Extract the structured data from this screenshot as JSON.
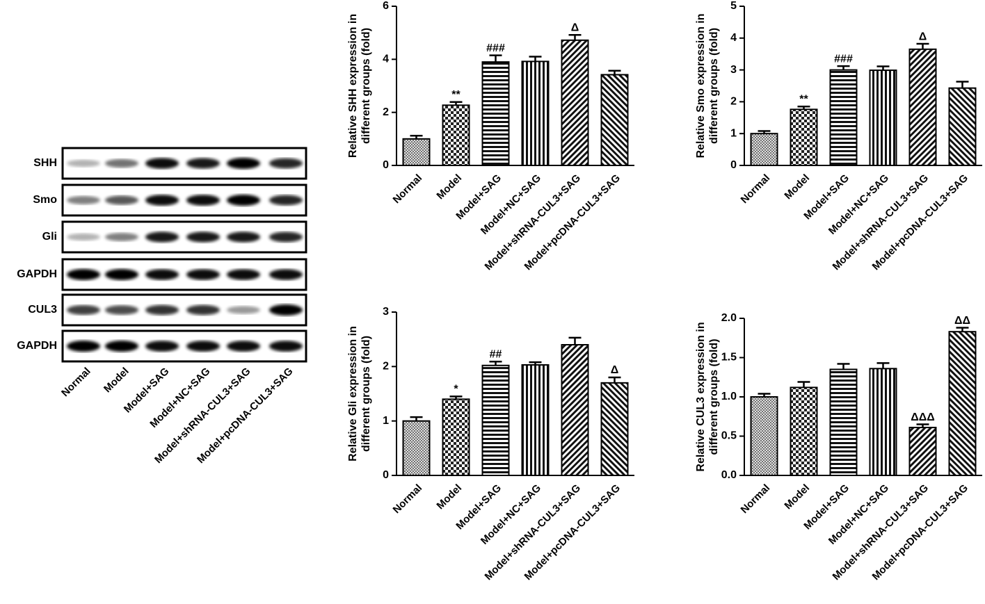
{
  "blot": {
    "rows": [
      "SHH",
      "Smo",
      "Gli",
      "GAPDH",
      "CUL3",
      "GAPDH"
    ],
    "lanes": [
      "Normal",
      "Model",
      "Model+SAG",
      "Model+NC+SAG",
      "Model+shRNA-CUL3+SAG",
      "Model+pcDNA-CUL3+SAG"
    ]
  },
  "chart_data": [
    {
      "type": "bar",
      "ylabel": [
        "Relative SHH expression in",
        "different groups (fold)"
      ],
      "categories": [
        "Normal",
        "Model",
        "Model+SAG",
        "Model+NC+SAG",
        "Model+shRNA-CUL3+SAG",
        "Model+pcDNA-CUL3+SAG"
      ],
      "values": [
        1.0,
        2.27,
        3.9,
        3.92,
        4.72,
        3.42
      ],
      "errors": [
        0.12,
        0.12,
        0.25,
        0.18,
        0.2,
        0.15
      ],
      "annotations": [
        null,
        "**",
        "###",
        null,
        "Δ",
        null
      ],
      "ylim": [
        0,
        6
      ],
      "yticks": [
        0,
        2,
        4,
        6
      ]
    },
    {
      "type": "bar",
      "ylabel": [
        "Relative Smo expression in",
        "different groups (fold)"
      ],
      "categories": [
        "Normal",
        "Model",
        "Model+SAG",
        "Model+NC+SAG",
        "Model+shRNA-CUL3+SAG",
        "Model+pcDNA-CUL3+SAG"
      ],
      "values": [
        1.0,
        1.76,
        3.0,
        2.99,
        3.65,
        2.43
      ],
      "errors": [
        0.08,
        0.09,
        0.12,
        0.12,
        0.17,
        0.2
      ],
      "annotations": [
        null,
        "**",
        "###",
        null,
        "Δ",
        null
      ],
      "ylim": [
        0,
        5
      ],
      "yticks": [
        0,
        1,
        2,
        3,
        4,
        5
      ]
    },
    {
      "type": "bar",
      "ylabel": [
        "Relative Gli expression in",
        "different groups (fold)"
      ],
      "categories": [
        "Normal",
        "Model",
        "Model+SAG",
        "Model+NC+SAG",
        "Model+shRNA-CUL3+SAG",
        "Model+pcDNA-CUL3+SAG"
      ],
      "values": [
        1.0,
        1.4,
        2.02,
        2.03,
        2.4,
        1.7
      ],
      "errors": [
        0.07,
        0.05,
        0.07,
        0.05,
        0.13,
        0.1
      ],
      "annotations": [
        null,
        "*",
        "##",
        null,
        null,
        "Δ"
      ],
      "ylim": [
        0,
        3
      ],
      "yticks": [
        0,
        1,
        2,
        3
      ]
    },
    {
      "type": "bar",
      "ylabel": [
        "Relative CUL3 expression in",
        "different groups (fold)"
      ],
      "categories": [
        "Normal",
        "Model",
        "Model+SAG",
        "Model+NC+SAG",
        "Model+shRNA-CUL3+SAG",
        "Model+pcDNA-CUL3+SAG"
      ],
      "values": [
        1.0,
        1.12,
        1.35,
        1.36,
        0.61,
        1.83
      ],
      "errors": [
        0.04,
        0.07,
        0.07,
        0.07,
        0.04,
        0.05
      ],
      "annotations": [
        null,
        null,
        null,
        null,
        "ΔΔΔ",
        "ΔΔ"
      ],
      "ylim": [
        0,
        2
      ],
      "yticks": [
        {
          "value": 0,
          "label": "0.0"
        },
        0.5,
        {
          "value": 1,
          "label": "1.0"
        },
        1.5,
        {
          "value": 2,
          "label": "2.0"
        }
      ]
    }
  ]
}
